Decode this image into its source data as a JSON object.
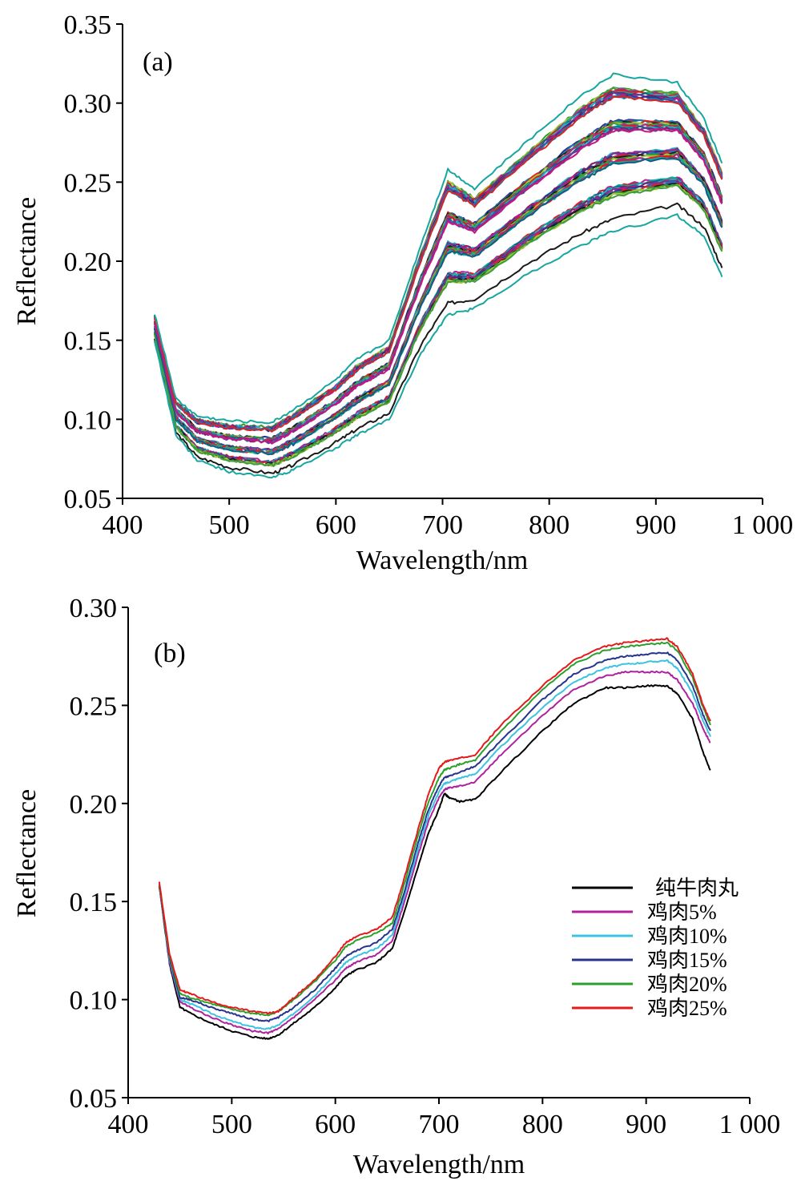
{
  "chart_data": [
    {
      "type": "line",
      "panel_label": "(a)",
      "xlabel": "Wavelength/nm",
      "ylabel": "Reflectance",
      "xlim": [
        400,
        1000
      ],
      "ylim": [
        0.05,
        0.35
      ],
      "x_ticks": [
        400,
        500,
        600,
        700,
        800,
        900,
        1000
      ],
      "x_tick_labels": [
        "400",
        "500",
        "600",
        "700",
        "800",
        "900",
        "1 000"
      ],
      "y_ticks": [
        0.05,
        0.1,
        0.15,
        0.2,
        0.25,
        0.3,
        0.35
      ],
      "y_tick_labels": [
        "0.05",
        "0.10",
        "0.15",
        "0.20",
        "0.25",
        "0.30",
        "0.35"
      ],
      "grid": false,
      "legend": null,
      "x": [
        430,
        450,
        470,
        500,
        540,
        560,
        600,
        620,
        650,
        680,
        705,
        730,
        780,
        830,
        860,
        920,
        945,
        962
      ],
      "series_envelope": {
        "count": 60,
        "upper": [
          0.167,
          0.113,
          0.102,
          0.099,
          0.098,
          0.106,
          0.125,
          0.138,
          0.15,
          0.211,
          0.258,
          0.246,
          0.276,
          0.305,
          0.318,
          0.313,
          0.29,
          0.262
        ],
        "lower": [
          0.15,
          0.09,
          0.074,
          0.067,
          0.063,
          0.068,
          0.082,
          0.09,
          0.1,
          0.142,
          0.166,
          0.17,
          0.192,
          0.21,
          0.219,
          0.229,
          0.216,
          0.19
        ]
      },
      "colors": [
        "#1a1a1a",
        "#b0219e",
        "#22b5c9",
        "#27348b",
        "#2ca02c",
        "#e41a1c",
        "#8b1c62",
        "#1f77b4",
        "#a8c83c",
        "#17a6a0",
        "#6a3d9a",
        "#d62728",
        "#3f9d3f",
        "#0e5f86",
        "#c71585"
      ]
    },
    {
      "type": "line",
      "panel_label": "(b)",
      "xlabel": "Wavelength/nm",
      "ylabel": "Reflectance",
      "xlim": [
        400,
        1000
      ],
      "ylim": [
        0.05,
        0.3
      ],
      "x_ticks": [
        400,
        500,
        600,
        700,
        800,
        900,
        1000
      ],
      "x_tick_labels": [
        "400",
        "500",
        "600",
        "700",
        "800",
        "900",
        "1 000"
      ],
      "y_ticks": [
        0.05,
        0.1,
        0.15,
        0.2,
        0.25,
        0.3
      ],
      "y_tick_labels": [
        "0.05",
        "0.10",
        "0.15",
        "0.20",
        "0.25",
        "0.30"
      ],
      "grid": false,
      "legend_position": "right",
      "x": [
        430,
        440,
        450,
        460,
        480,
        500,
        520,
        535,
        545,
        560,
        580,
        600,
        610,
        620,
        640,
        655,
        665,
        680,
        690,
        700,
        705,
        710,
        720,
        735,
        760,
        800,
        830,
        860,
        880,
        900,
        920,
        930,
        945,
        955,
        962
      ],
      "series": [
        {
          "name": "纯牛肉丸",
          "color": "#000000",
          "values": [
            0.158,
            0.118,
            0.096,
            0.093,
            0.088,
            0.084,
            0.081,
            0.08,
            0.082,
            0.088,
            0.096,
            0.106,
            0.112,
            0.115,
            0.119,
            0.126,
            0.142,
            0.168,
            0.185,
            0.197,
            0.205,
            0.203,
            0.201,
            0.202,
            0.216,
            0.237,
            0.251,
            0.259,
            0.259,
            0.26,
            0.26,
            0.256,
            0.243,
            0.226,
            0.217
          ]
        },
        {
          "name": "鸡肉5%",
          "color": "#b0219e",
          "values": [
            0.158,
            0.119,
            0.099,
            0.096,
            0.091,
            0.087,
            0.084,
            0.083,
            0.085,
            0.091,
            0.1,
            0.11,
            0.116,
            0.119,
            0.123,
            0.13,
            0.147,
            0.174,
            0.191,
            0.203,
            0.207,
            0.208,
            0.209,
            0.211,
            0.225,
            0.245,
            0.258,
            0.265,
            0.267,
            0.267,
            0.267,
            0.263,
            0.251,
            0.238,
            0.231
          ]
        },
        {
          "name": "鸡肉10%",
          "color": "#3cc3e0",
          "values": [
            0.158,
            0.12,
            0.1,
            0.098,
            0.093,
            0.089,
            0.086,
            0.085,
            0.087,
            0.093,
            0.102,
            0.113,
            0.119,
            0.122,
            0.126,
            0.133,
            0.15,
            0.177,
            0.194,
            0.206,
            0.21,
            0.211,
            0.213,
            0.215,
            0.229,
            0.249,
            0.262,
            0.269,
            0.271,
            0.272,
            0.273,
            0.269,
            0.256,
            0.242,
            0.234
          ]
        },
        {
          "name": "鸡肉15%",
          "color": "#27348b",
          "values": [
            0.158,
            0.121,
            0.101,
            0.1,
            0.096,
            0.093,
            0.09,
            0.089,
            0.091,
            0.096,
            0.105,
            0.116,
            0.122,
            0.125,
            0.129,
            0.136,
            0.152,
            0.18,
            0.197,
            0.209,
            0.213,
            0.214,
            0.216,
            0.219,
            0.232,
            0.253,
            0.266,
            0.273,
            0.275,
            0.276,
            0.277,
            0.273,
            0.26,
            0.245,
            0.237
          ]
        },
        {
          "name": "鸡肉20%",
          "color": "#2ca02c",
          "values": [
            0.159,
            0.122,
            0.103,
            0.101,
            0.098,
            0.095,
            0.093,
            0.092,
            0.094,
            0.1,
            0.109,
            0.12,
            0.127,
            0.13,
            0.134,
            0.139,
            0.156,
            0.184,
            0.201,
            0.213,
            0.217,
            0.218,
            0.22,
            0.222,
            0.237,
            0.258,
            0.271,
            0.278,
            0.28,
            0.281,
            0.282,
            0.278,
            0.264,
            0.249,
            0.24
          ]
        },
        {
          "name": "鸡肉25%",
          "color": "#e41a1c",
          "values": [
            0.16,
            0.123,
            0.105,
            0.103,
            0.099,
            0.096,
            0.094,
            0.093,
            0.094,
            0.101,
            0.11,
            0.122,
            0.129,
            0.132,
            0.136,
            0.142,
            0.159,
            0.187,
            0.205,
            0.218,
            0.221,
            0.222,
            0.223,
            0.225,
            0.24,
            0.26,
            0.273,
            0.28,
            0.282,
            0.283,
            0.284,
            0.28,
            0.266,
            0.25,
            0.242
          ]
        }
      ]
    }
  ]
}
